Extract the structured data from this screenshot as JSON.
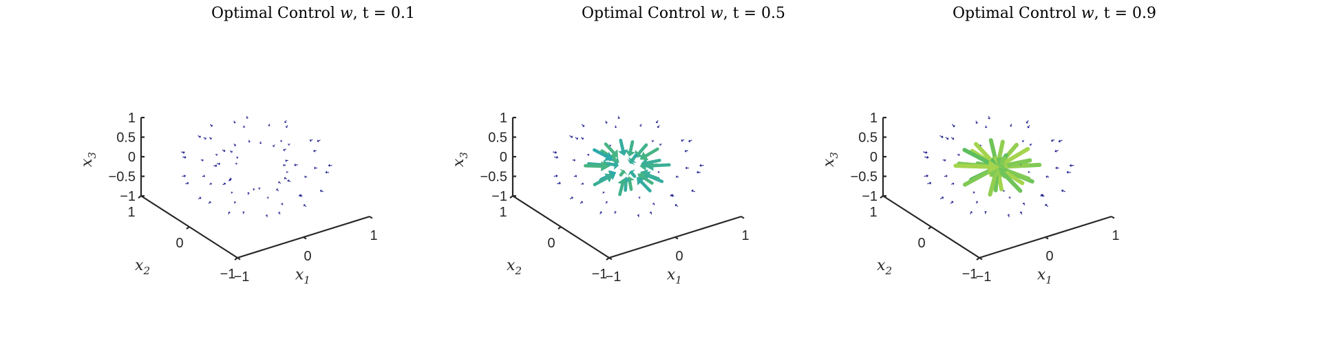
{
  "chart_data": [
    {
      "type": "quiver3d",
      "title": "Optimal Control w⃗, t = 0.1",
      "title_prefix": "Optimal Control ",
      "title_vec": "w",
      "title_suffix": ", t = 0.1",
      "t": 0.1,
      "xlabel": "x1",
      "ylabel": "x2",
      "zlabel": "x3",
      "xlim": [
        -1,
        1
      ],
      "ylim": [
        -1,
        1
      ],
      "zlim": [
        -1,
        1
      ],
      "xticks": [
        "-1",
        "0",
        "1"
      ],
      "yticks": [
        "-1",
        "0",
        "1"
      ],
      "zticks": [
        "-1",
        "-0.5",
        "0",
        "0.5",
        "1"
      ],
      "grid": false,
      "arrow_field": "radial_inward",
      "max_relative_magnitude": 0.08,
      "colormap": [
        "#1a1a8c",
        "#1f7f8f",
        "#2aa7b0",
        "#5fbf5c",
        "#b5d94a"
      ]
    },
    {
      "type": "quiver3d",
      "title": "Optimal Control w⃗, t = 0.5",
      "title_prefix": "Optimal Control ",
      "title_vec": "w",
      "title_suffix": ", t = 0.5",
      "t": 0.5,
      "xlabel": "x1",
      "ylabel": "x2",
      "zlabel": "x3",
      "xlim": [
        -1,
        1
      ],
      "ylim": [
        -1,
        1
      ],
      "zlim": [
        -1,
        1
      ],
      "xticks": [
        "-1",
        "0",
        "1"
      ],
      "yticks": [
        "-1",
        "0",
        "1"
      ],
      "zticks": [
        "-1",
        "-0.5",
        "0",
        "0.5",
        "1"
      ],
      "grid": false,
      "arrow_field": "radial_inward",
      "max_relative_magnitude": 0.55,
      "colormap": [
        "#1a1a8c",
        "#1f7f8f",
        "#2aa7b0",
        "#5fbf5c",
        "#b5d94a"
      ]
    },
    {
      "type": "quiver3d",
      "title": "Optimal Control w⃗, t = 0.9",
      "title_prefix": "Optimal Control ",
      "title_vec": "w",
      "title_suffix": ", t = 0.9",
      "t": 0.9,
      "xlabel": "x1",
      "ylabel": "x2",
      "zlabel": "x3",
      "xlim": [
        -1,
        1
      ],
      "ylim": [
        -1,
        1
      ],
      "zlim": [
        -1,
        1
      ],
      "xticks": [
        "-1",
        "0",
        "1"
      ],
      "yticks": [
        "-1",
        "0",
        "1"
      ],
      "zticks": [
        "-1",
        "-0.5",
        "0",
        "0.5",
        "1"
      ],
      "grid": false,
      "arrow_field": "radial_inward",
      "max_relative_magnitude": 1.0,
      "colormap": [
        "#1a1a8c",
        "#1f7f8f",
        "#2aa7b0",
        "#5fbf5c",
        "#b5d94a"
      ]
    }
  ]
}
